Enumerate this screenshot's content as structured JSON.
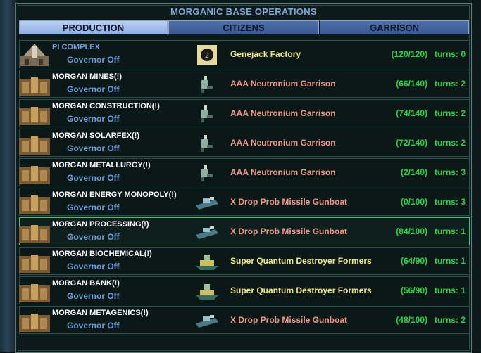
{
  "window": {
    "title": "MORGANIC BASE OPERATIONS"
  },
  "tabs": [
    {
      "label": "PRODUCTION",
      "active": true
    },
    {
      "label": "CITIZENS",
      "active": false
    },
    {
      "label": "GARRISON",
      "active": false
    }
  ],
  "rows": [
    {
      "name": "PI COMPLEX",
      "governor": "Governor Off",
      "production": "Genejack Factory",
      "progress": "(120/120)",
      "turns": "turns: 0",
      "icon": "facility-icon",
      "prod_color": "#f3e68a"
    },
    {
      "name": "MORGAN MINES(!)",
      "governor": "Governor Off",
      "production": "AAA Neutronium Garrison",
      "progress": "(66/140)",
      "turns": "turns: 2",
      "icon": "infantry-unit-icon",
      "prod_color": "#f09a8a"
    },
    {
      "name": "MORGAN CONSTRUCTION(!)",
      "governor": "Governor Off",
      "production": "AAA Neutronium Garrison",
      "progress": "(74/140)",
      "turns": "turns: 2",
      "icon": "infantry-unit-icon",
      "prod_color": "#f09a8a"
    },
    {
      "name": "MORGAN SOLARFEX(!)",
      "governor": "Governor Off",
      "production": "AAA Neutronium Garrison",
      "progress": "(72/140)",
      "turns": "turns: 2",
      "icon": "infantry-unit-icon",
      "prod_color": "#f09a8a"
    },
    {
      "name": "MORGAN METALLURGY(!)",
      "governor": "Governor Off",
      "production": "AAA Neutronium Garrison",
      "progress": "(2/140)",
      "turns": "turns: 3",
      "icon": "infantry-unit-icon",
      "prod_color": "#f09a8a"
    },
    {
      "name": "MORGAN ENERGY MONOPOLY(!)",
      "governor": "Governor Off",
      "production": "X Drop Prob Missile Gunboat",
      "progress": "(0/100)",
      "turns": "turns: 3",
      "icon": "gunboat-unit-icon",
      "prod_color": "#f09a8a"
    },
    {
      "name": "MORGAN PROCESSING(!)",
      "governor": "Governor Off",
      "production": "X Drop Prob Missile Gunboat",
      "progress": "(84/100)",
      "turns": "turns: 1",
      "icon": "gunboat-unit-icon",
      "prod_color": "#f09a8a",
      "selected": true
    },
    {
      "name": "MORGAN BIOCHEMICAL(!)",
      "governor": "Governor Off",
      "production": "Super Quantum Destroyer Formers",
      "progress": "(64/90)",
      "turns": "turns: 1",
      "icon": "destroyer-unit-icon",
      "prod_color": "#f3e68a"
    },
    {
      "name": "MORGAN BANK(!)",
      "governor": "Governor Off",
      "production": "Super Quantum Destroyer Formers",
      "progress": "(56/90)",
      "turns": "turns: 1",
      "icon": "destroyer-unit-icon",
      "prod_color": "#f3e68a"
    },
    {
      "name": "MORGAN METAGENICS(!)",
      "governor": "Governor Off",
      "production": "X Drop Prob Missile Gunboat",
      "progress": "(48/100)",
      "turns": "turns: 2",
      "icon": "gunboat-unit-icon",
      "prod_color": "#f09a8a"
    }
  ]
}
